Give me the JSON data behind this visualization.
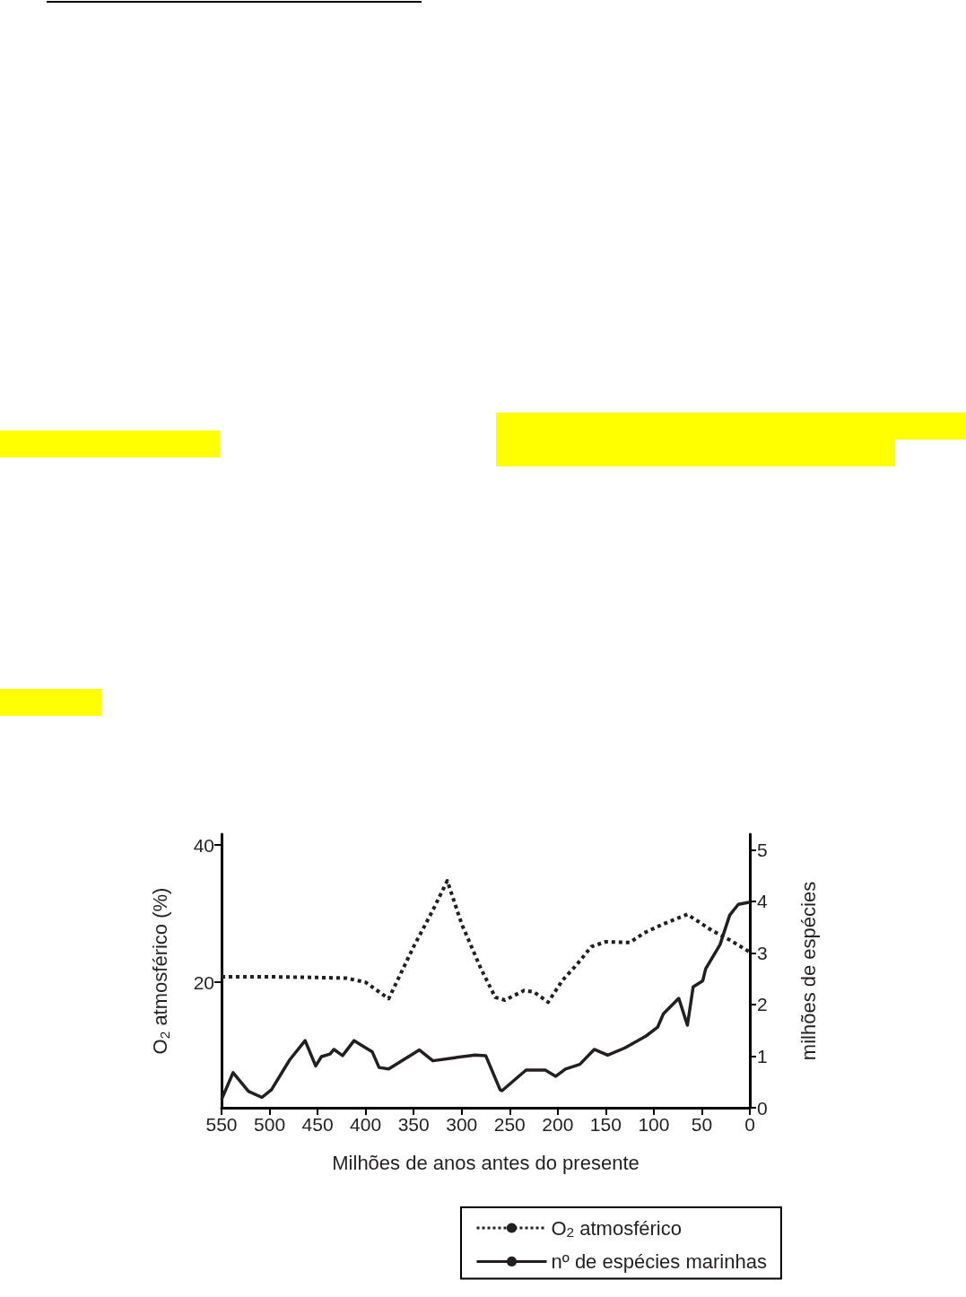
{
  "chart_data": {
    "type": "line",
    "xlabel": "Milhões de anos antes do presente",
    "ylabel": "O$_{2}$ atmosférico (%)",
    "y2label": "milhões de espécies",
    "xlim": [
      550,
      0
    ],
    "xticks": [
      550,
      500,
      450,
      400,
      350,
      300,
      250,
      200,
      150,
      100,
      50,
      0
    ],
    "ylim": [
      1.7,
      41.6
    ],
    "yticks": [
      20,
      40
    ],
    "y2lim": [
      0,
      5.3
    ],
    "y2ticks": [
      0,
      1,
      2,
      3,
      4,
      5
    ],
    "grid": false,
    "legend": "bottom right",
    "marker": "none",
    "series": [
      {
        "name": "O$_{2}$ atmosférico",
        "color": "#231f20",
        "line_style": "dotted",
        "axis": "y",
        "x": [
          550,
          500,
          450,
          420,
          400,
          380,
          376,
          350,
          330,
          315,
          300,
          280,
          265,
          255,
          235,
          225,
          210,
          195,
          180,
          165,
          150,
          125,
          110,
          90,
          65,
          40,
          20,
          0
        ],
        "values": [
          20.8,
          20.8,
          20.7,
          20.6,
          20.0,
          18.0,
          17.6,
          25.2,
          30.5,
          34.8,
          28.5,
          22.0,
          17.8,
          17.4,
          18.8,
          18.6,
          17.1,
          20.3,
          22.6,
          25.2,
          25.9,
          25.8,
          27.2,
          28.5,
          29.9,
          27.6,
          26.1,
          24.4
        ]
      },
      {
        "name": "nº de espécies marinhas",
        "color": "#231f20",
        "line_style": "solid",
        "axis": "y2",
        "x": [
          550,
          538,
          522,
          508,
          498,
          479,
          463,
          452,
          446,
          437,
          433,
          424,
          412,
          393,
          386,
          376,
          344,
          330,
          307,
          286,
          275,
          260,
          258,
          233,
          213,
          202,
          192,
          177,
          162,
          148,
          130,
          108,
          96,
          90,
          74,
          65,
          59,
          49,
          46,
          31,
          21,
          12,
          1,
          0
        ],
        "values": [
          0.16,
          0.68,
          0.32,
          0.2,
          0.35,
          0.93,
          1.3,
          0.81,
          0.99,
          1.04,
          1.13,
          1.01,
          1.3,
          1.08,
          0.78,
          0.75,
          1.12,
          0.91,
          0.97,
          1.02,
          1.01,
          0.35,
          0.33,
          0.73,
          0.73,
          0.61,
          0.75,
          0.84,
          1.13,
          1.02,
          1.16,
          1.39,
          1.56,
          1.82,
          2.12,
          1.6,
          2.34,
          2.46,
          2.69,
          3.16,
          3.73,
          3.94,
          3.98,
          3.98
        ]
      }
    ]
  }
}
